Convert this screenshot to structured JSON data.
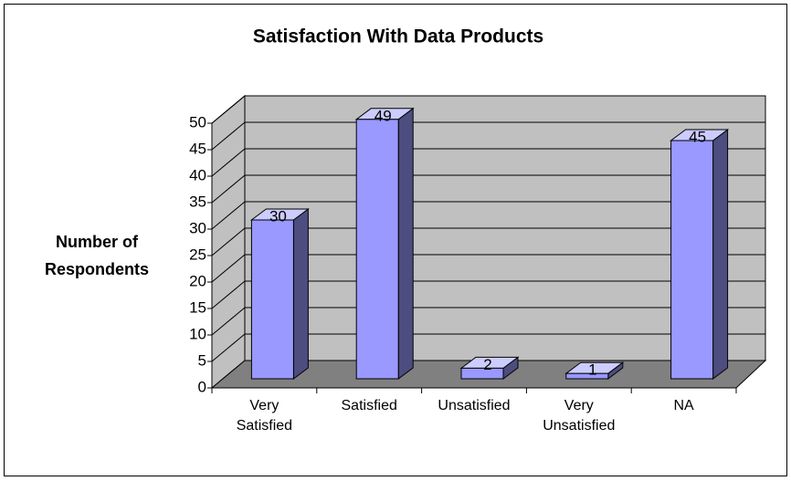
{
  "chart_data": {
    "type": "bar3d",
    "title": "Satisfaction With Data Products",
    "y_label": "Number of Respondents",
    "categories": [
      "Very Satisfied",
      "Satisfied",
      "Unsatisfied",
      "Very Unsatisfied",
      "NA"
    ],
    "values": [
      30,
      49,
      2,
      1,
      45
    ],
    "color": "#9999ff",
    "ylim": [
      0,
      50
    ],
    "yticks": [
      0,
      5,
      10,
      15,
      20,
      25,
      30,
      35,
      40,
      45,
      50
    ],
    "grid": true
  }
}
